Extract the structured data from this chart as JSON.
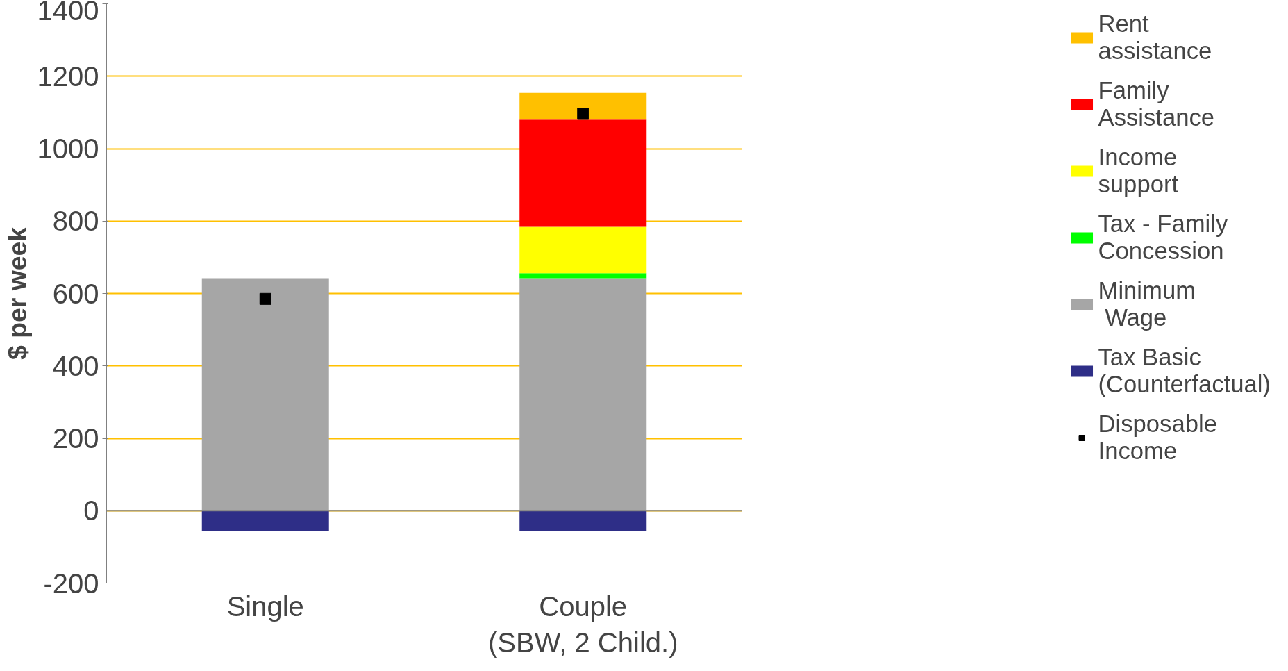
{
  "chart_data": {
    "type": "bar",
    "stacked": true,
    "ylabel": "$ per week",
    "categories": [
      "Single",
      "Couple\n(SBW, 2 Child.)"
    ],
    "series": [
      {
        "name": "Tax Basic\n(Counterfactual)",
        "color": "#2e2e87",
        "values": [
          -57,
          -57
        ]
      },
      {
        "name": "Minimum\n Wage",
        "color": "#a6a6a6",
        "values": [
          642,
          642
        ]
      },
      {
        "name": "Tax - Family\nConcession",
        "color": "#00ff00",
        "values": [
          null,
          14
        ]
      },
      {
        "name": "Income\nsupport",
        "color": "#ffff00",
        "values": [
          null,
          128
        ]
      },
      {
        "name": "Family\nAssistance",
        "color": "#ff0000",
        "values": [
          null,
          296
        ]
      },
      {
        "name": "Rent\nassistance",
        "color": "#ffc000",
        "values": [
          null,
          74
        ]
      },
      {
        "name": "Disposable\nIncome",
        "type": "scatter",
        "color": "#000000",
        "values": [
          585,
          1096
        ]
      }
    ],
    "ylim": [
      -200,
      1400
    ],
    "yticks": [
      -200,
      0,
      200,
      400,
      600,
      800,
      1000,
      1200,
      1400
    ],
    "grid": "y",
    "legend": "right",
    "ref_lines": [
      {
        "axis": "y",
        "value": 0,
        "color": "#808080"
      }
    ]
  }
}
